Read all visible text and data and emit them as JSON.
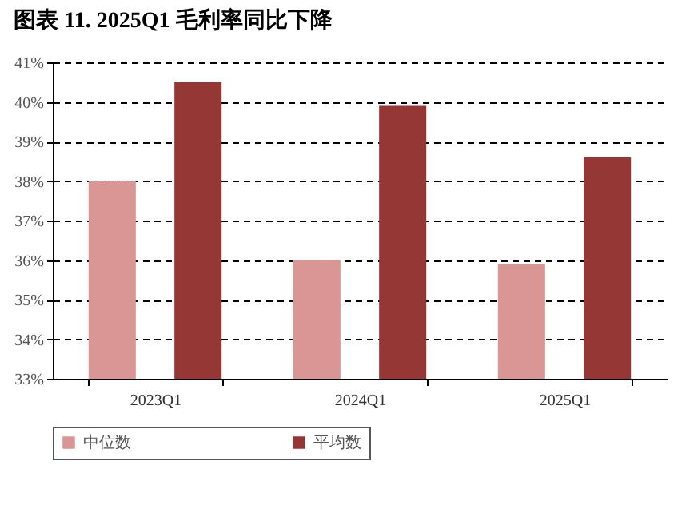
{
  "chart_data": {
    "type": "bar",
    "title": "图表 11. 2025Q1 毛利率同比下降",
    "categories": [
      "2023Q1",
      "2024Q1",
      "2025Q1"
    ],
    "series": [
      {
        "name": "中位数",
        "color": "#d99694",
        "values": [
          38.0,
          36.0,
          35.9
        ]
      },
      {
        "name": "平均数",
        "color": "#953735",
        "values": [
          40.5,
          39.9,
          38.6
        ]
      }
    ],
    "ylim": [
      33,
      41
    ],
    "yticks": [
      {
        "value": 33,
        "label": "33%"
      },
      {
        "value": 34,
        "label": "34%"
      },
      {
        "value": 35,
        "label": "35%"
      },
      {
        "value": 36,
        "label": "36%"
      },
      {
        "value": 37,
        "label": "37%"
      },
      {
        "value": 38,
        "label": "38%"
      },
      {
        "value": 39,
        "label": "39%"
      },
      {
        "value": 40,
        "label": "40%"
      },
      {
        "value": 41,
        "label": "41%"
      }
    ],
    "grid": "y",
    "legend": "bottom"
  }
}
